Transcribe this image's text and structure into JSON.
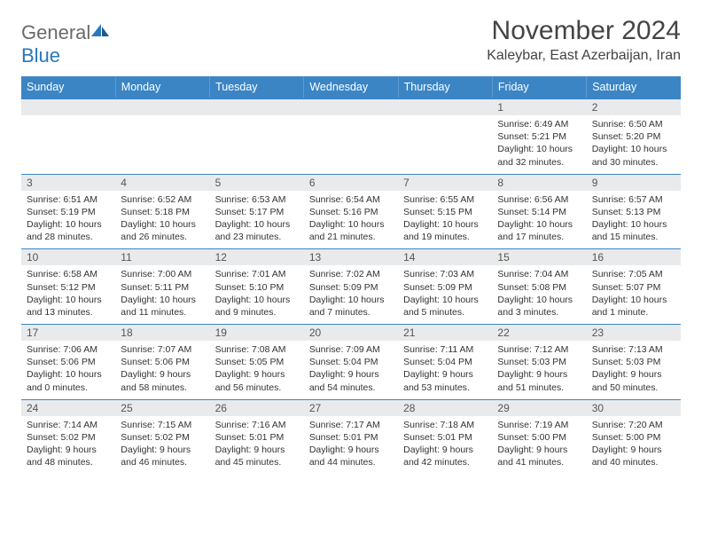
{
  "logo": {
    "text_general": "General",
    "text_blue": "Blue"
  },
  "title": {
    "month": "November 2024",
    "location": "Kaleybar, East Azerbaijan, Iran"
  },
  "columns": [
    "Sunday",
    "Monday",
    "Tuesday",
    "Wednesday",
    "Thursday",
    "Friday",
    "Saturday"
  ],
  "colors": {
    "header_bg": "#3b85c5",
    "header_text": "#ffffff",
    "daynum_bg": "#e9eaeb",
    "border": "#3b85c5",
    "logo_gray": "#6a6a6a",
    "logo_blue": "#2a77bb"
  },
  "weeks": [
    [
      {
        "num": null,
        "sunrise": null,
        "sunset": null,
        "daylight": null
      },
      {
        "num": null,
        "sunrise": null,
        "sunset": null,
        "daylight": null
      },
      {
        "num": null,
        "sunrise": null,
        "sunset": null,
        "daylight": null
      },
      {
        "num": null,
        "sunrise": null,
        "sunset": null,
        "daylight": null
      },
      {
        "num": null,
        "sunrise": null,
        "sunset": null,
        "daylight": null
      },
      {
        "num": "1",
        "sunrise": "Sunrise: 6:49 AM",
        "sunset": "Sunset: 5:21 PM",
        "daylight": "Daylight: 10 hours and 32 minutes."
      },
      {
        "num": "2",
        "sunrise": "Sunrise: 6:50 AM",
        "sunset": "Sunset: 5:20 PM",
        "daylight": "Daylight: 10 hours and 30 minutes."
      }
    ],
    [
      {
        "num": "3",
        "sunrise": "Sunrise: 6:51 AM",
        "sunset": "Sunset: 5:19 PM",
        "daylight": "Daylight: 10 hours and 28 minutes."
      },
      {
        "num": "4",
        "sunrise": "Sunrise: 6:52 AM",
        "sunset": "Sunset: 5:18 PM",
        "daylight": "Daylight: 10 hours and 26 minutes."
      },
      {
        "num": "5",
        "sunrise": "Sunrise: 6:53 AM",
        "sunset": "Sunset: 5:17 PM",
        "daylight": "Daylight: 10 hours and 23 minutes."
      },
      {
        "num": "6",
        "sunrise": "Sunrise: 6:54 AM",
        "sunset": "Sunset: 5:16 PM",
        "daylight": "Daylight: 10 hours and 21 minutes."
      },
      {
        "num": "7",
        "sunrise": "Sunrise: 6:55 AM",
        "sunset": "Sunset: 5:15 PM",
        "daylight": "Daylight: 10 hours and 19 minutes."
      },
      {
        "num": "8",
        "sunrise": "Sunrise: 6:56 AM",
        "sunset": "Sunset: 5:14 PM",
        "daylight": "Daylight: 10 hours and 17 minutes."
      },
      {
        "num": "9",
        "sunrise": "Sunrise: 6:57 AM",
        "sunset": "Sunset: 5:13 PM",
        "daylight": "Daylight: 10 hours and 15 minutes."
      }
    ],
    [
      {
        "num": "10",
        "sunrise": "Sunrise: 6:58 AM",
        "sunset": "Sunset: 5:12 PM",
        "daylight": "Daylight: 10 hours and 13 minutes."
      },
      {
        "num": "11",
        "sunrise": "Sunrise: 7:00 AM",
        "sunset": "Sunset: 5:11 PM",
        "daylight": "Daylight: 10 hours and 11 minutes."
      },
      {
        "num": "12",
        "sunrise": "Sunrise: 7:01 AM",
        "sunset": "Sunset: 5:10 PM",
        "daylight": "Daylight: 10 hours and 9 minutes."
      },
      {
        "num": "13",
        "sunrise": "Sunrise: 7:02 AM",
        "sunset": "Sunset: 5:09 PM",
        "daylight": "Daylight: 10 hours and 7 minutes."
      },
      {
        "num": "14",
        "sunrise": "Sunrise: 7:03 AM",
        "sunset": "Sunset: 5:09 PM",
        "daylight": "Daylight: 10 hours and 5 minutes."
      },
      {
        "num": "15",
        "sunrise": "Sunrise: 7:04 AM",
        "sunset": "Sunset: 5:08 PM",
        "daylight": "Daylight: 10 hours and 3 minutes."
      },
      {
        "num": "16",
        "sunrise": "Sunrise: 7:05 AM",
        "sunset": "Sunset: 5:07 PM",
        "daylight": "Daylight: 10 hours and 1 minute."
      }
    ],
    [
      {
        "num": "17",
        "sunrise": "Sunrise: 7:06 AM",
        "sunset": "Sunset: 5:06 PM",
        "daylight": "Daylight: 10 hours and 0 minutes."
      },
      {
        "num": "18",
        "sunrise": "Sunrise: 7:07 AM",
        "sunset": "Sunset: 5:06 PM",
        "daylight": "Daylight: 9 hours and 58 minutes."
      },
      {
        "num": "19",
        "sunrise": "Sunrise: 7:08 AM",
        "sunset": "Sunset: 5:05 PM",
        "daylight": "Daylight: 9 hours and 56 minutes."
      },
      {
        "num": "20",
        "sunrise": "Sunrise: 7:09 AM",
        "sunset": "Sunset: 5:04 PM",
        "daylight": "Daylight: 9 hours and 54 minutes."
      },
      {
        "num": "21",
        "sunrise": "Sunrise: 7:11 AM",
        "sunset": "Sunset: 5:04 PM",
        "daylight": "Daylight: 9 hours and 53 minutes."
      },
      {
        "num": "22",
        "sunrise": "Sunrise: 7:12 AM",
        "sunset": "Sunset: 5:03 PM",
        "daylight": "Daylight: 9 hours and 51 minutes."
      },
      {
        "num": "23",
        "sunrise": "Sunrise: 7:13 AM",
        "sunset": "Sunset: 5:03 PM",
        "daylight": "Daylight: 9 hours and 50 minutes."
      }
    ],
    [
      {
        "num": "24",
        "sunrise": "Sunrise: 7:14 AM",
        "sunset": "Sunset: 5:02 PM",
        "daylight": "Daylight: 9 hours and 48 minutes."
      },
      {
        "num": "25",
        "sunrise": "Sunrise: 7:15 AM",
        "sunset": "Sunset: 5:02 PM",
        "daylight": "Daylight: 9 hours and 46 minutes."
      },
      {
        "num": "26",
        "sunrise": "Sunrise: 7:16 AM",
        "sunset": "Sunset: 5:01 PM",
        "daylight": "Daylight: 9 hours and 45 minutes."
      },
      {
        "num": "27",
        "sunrise": "Sunrise: 7:17 AM",
        "sunset": "Sunset: 5:01 PM",
        "daylight": "Daylight: 9 hours and 44 minutes."
      },
      {
        "num": "28",
        "sunrise": "Sunrise: 7:18 AM",
        "sunset": "Sunset: 5:01 PM",
        "daylight": "Daylight: 9 hours and 42 minutes."
      },
      {
        "num": "29",
        "sunrise": "Sunrise: 7:19 AM",
        "sunset": "Sunset: 5:00 PM",
        "daylight": "Daylight: 9 hours and 41 minutes."
      },
      {
        "num": "30",
        "sunrise": "Sunrise: 7:20 AM",
        "sunset": "Sunset: 5:00 PM",
        "daylight": "Daylight: 9 hours and 40 minutes."
      }
    ]
  ]
}
